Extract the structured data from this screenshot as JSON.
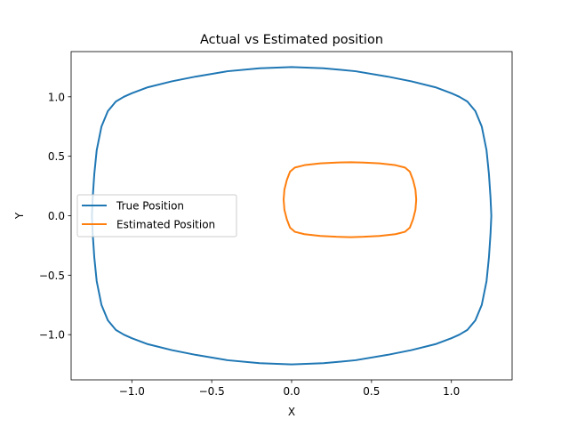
{
  "chart_data": {
    "type": "line",
    "title": "Actual vs Estimated position",
    "xlabel": "X",
    "ylabel": "Y",
    "xlim": [
      -1.38,
      1.38
    ],
    "ylim": [
      -1.38,
      1.38
    ],
    "xticks": [
      -1.0,
      -0.5,
      0.0,
      0.5,
      1.0
    ],
    "xtick_labels": [
      "−1.0",
      "−0.5",
      "0.0",
      "0.5",
      "1.0"
    ],
    "yticks": [
      -1.0,
      -0.5,
      0.0,
      0.5,
      1.0
    ],
    "ytick_labels": [
      "−1.0",
      "−0.5",
      "0.0",
      "0.5",
      "1.0"
    ],
    "grid": false,
    "legend_position": "center-left",
    "series": [
      {
        "name": "True Position",
        "color": "#1f77b4",
        "points": [
          [
            1.25,
            0.0
          ],
          [
            1.245,
            0.15
          ],
          [
            1.235,
            0.35
          ],
          [
            1.22,
            0.55
          ],
          [
            1.19,
            0.75
          ],
          [
            1.15,
            0.88
          ],
          [
            1.1,
            0.96
          ],
          [
            1.05,
            1.0
          ],
          [
            1.0,
            1.03
          ],
          [
            0.9,
            1.08
          ],
          [
            0.75,
            1.13
          ],
          [
            0.6,
            1.17
          ],
          [
            0.4,
            1.215
          ],
          [
            0.2,
            1.24
          ],
          [
            0.0,
            1.25
          ],
          [
            -0.2,
            1.24
          ],
          [
            -0.4,
            1.215
          ],
          [
            -0.6,
            1.17
          ],
          [
            -0.75,
            1.13
          ],
          [
            -0.9,
            1.08
          ],
          [
            -1.0,
            1.03
          ],
          [
            -1.05,
            1.0
          ],
          [
            -1.1,
            0.96
          ],
          [
            -1.15,
            0.88
          ],
          [
            -1.19,
            0.75
          ],
          [
            -1.22,
            0.55
          ],
          [
            -1.235,
            0.35
          ],
          [
            -1.245,
            0.15
          ],
          [
            -1.25,
            0.0
          ],
          [
            -1.245,
            -0.15
          ],
          [
            -1.235,
            -0.35
          ],
          [
            -1.22,
            -0.55
          ],
          [
            -1.19,
            -0.75
          ],
          [
            -1.15,
            -0.88
          ],
          [
            -1.1,
            -0.96
          ],
          [
            -1.05,
            -1.0
          ],
          [
            -1.0,
            -1.03
          ],
          [
            -0.9,
            -1.08
          ],
          [
            -0.75,
            -1.13
          ],
          [
            -0.6,
            -1.17
          ],
          [
            -0.4,
            -1.215
          ],
          [
            -0.2,
            -1.24
          ],
          [
            0.0,
            -1.25
          ],
          [
            0.2,
            -1.24
          ],
          [
            0.4,
            -1.215
          ],
          [
            0.6,
            -1.17
          ],
          [
            0.75,
            -1.13
          ],
          [
            0.9,
            -1.08
          ],
          [
            1.0,
            -1.03
          ],
          [
            1.05,
            -1.0
          ],
          [
            1.1,
            -0.96
          ],
          [
            1.15,
            -0.88
          ],
          [
            1.19,
            -0.75
          ],
          [
            1.22,
            -0.55
          ],
          [
            1.235,
            -0.35
          ],
          [
            1.245,
            -0.15
          ],
          [
            1.25,
            0.0
          ]
        ]
      },
      {
        "name": "Estimated Position",
        "color": "#ff7f0e",
        "points": [
          [
            0.78,
            0.135
          ],
          [
            0.775,
            0.22
          ],
          [
            0.76,
            0.3
          ],
          [
            0.74,
            0.37
          ],
          [
            0.71,
            0.405
          ],
          [
            0.65,
            0.425
          ],
          [
            0.55,
            0.44
          ],
          [
            0.45,
            0.447
          ],
          [
            0.37,
            0.45
          ],
          [
            0.28,
            0.447
          ],
          [
            0.18,
            0.44
          ],
          [
            0.08,
            0.425
          ],
          [
            0.02,
            0.405
          ],
          [
            -0.01,
            0.37
          ],
          [
            -0.03,
            0.3
          ],
          [
            -0.045,
            0.22
          ],
          [
            -0.05,
            0.135
          ],
          [
            -0.045,
            0.05
          ],
          [
            -0.03,
            -0.03
          ],
          [
            -0.01,
            -0.1
          ],
          [
            0.02,
            -0.135
          ],
          [
            0.08,
            -0.155
          ],
          [
            0.18,
            -0.17
          ],
          [
            0.28,
            -0.177
          ],
          [
            0.37,
            -0.18
          ],
          [
            0.45,
            -0.177
          ],
          [
            0.55,
            -0.17
          ],
          [
            0.65,
            -0.155
          ],
          [
            0.71,
            -0.135
          ],
          [
            0.74,
            -0.1
          ],
          [
            0.76,
            -0.03
          ],
          [
            0.775,
            0.05
          ],
          [
            0.78,
            0.135
          ]
        ]
      }
    ]
  }
}
